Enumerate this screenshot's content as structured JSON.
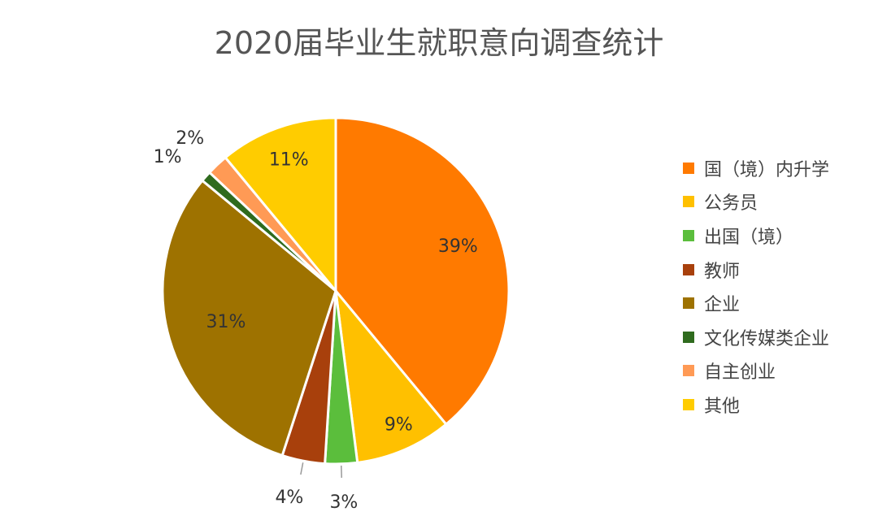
{
  "chart_data": {
    "type": "pie",
    "title": "2020届毕业生就职意向调查统计",
    "legend_position": "right",
    "slices": [
      {
        "label": "国（境）内升学",
        "value": 39,
        "value_label": "39%",
        "color": "#FF7A00"
      },
      {
        "label": "公务员",
        "value": 9,
        "value_label": "9%",
        "color": "#FFC000"
      },
      {
        "label": "出国（境）",
        "value": 3,
        "value_label": "3%",
        "color": "#5BBE3C"
      },
      {
        "label": "教师",
        "value": 4,
        "value_label": "4%",
        "color": "#A8400C"
      },
      {
        "label": "企业",
        "value": 31,
        "value_label": "31%",
        "color": "#9E7200"
      },
      {
        "label": "文化传媒类企业",
        "value": 1,
        "value_label": "1%",
        "color": "#2F6B1E"
      },
      {
        "label": "自主创业",
        "value": 2,
        "value_label": "2%",
        "color": "#FF9A55"
      },
      {
        "label": "其他",
        "value": 11,
        "value_label": "11%",
        "color": "#FFCC00"
      }
    ]
  }
}
